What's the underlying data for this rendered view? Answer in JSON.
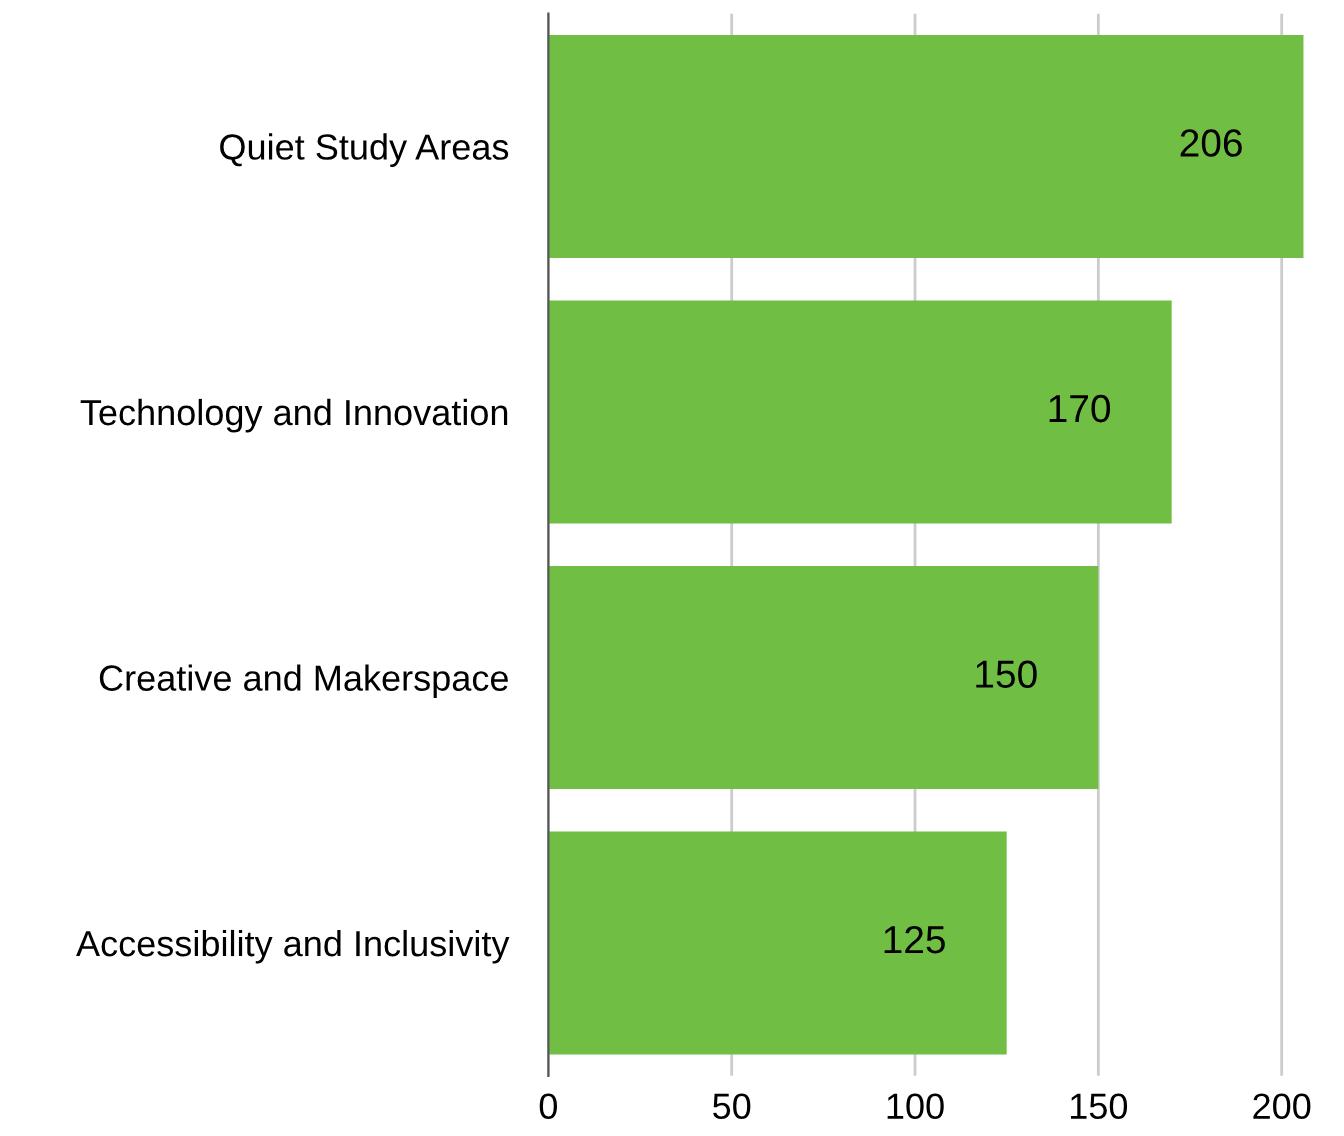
{
  "chart_data": {
    "type": "bar",
    "orientation": "horizontal",
    "categories": [
      "Quiet Study Areas",
      "Technology and Innovation",
      "Creative and Makerspace",
      "Accessibility and Inclusivity"
    ],
    "values": [
      206,
      170,
      150,
      125
    ],
    "color": "#70bf44",
    "xlim": [
      0,
      206
    ],
    "xticks": [
      0,
      50,
      100,
      150,
      200
    ],
    "grid": "x",
    "data_labels": true
  }
}
